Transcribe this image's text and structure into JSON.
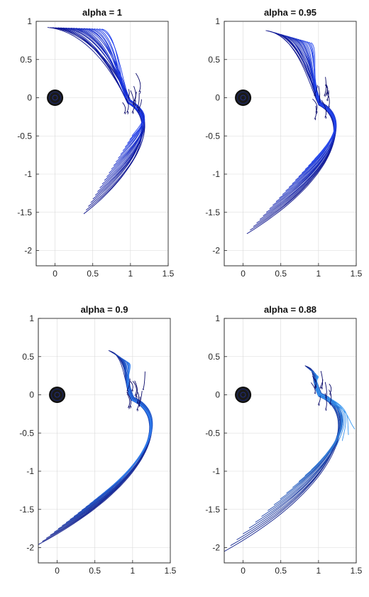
{
  "figure": {
    "background": "#ffffff"
  },
  "chart_data": [
    {
      "type": "line",
      "title": "alpha = 1",
      "xlim": [
        -0.25,
        1.5
      ],
      "ylim": [
        -2.2,
        1.0
      ],
      "xticks": [
        0,
        0.5,
        1,
        1.5
      ],
      "yticks": [
        1,
        0.5,
        0,
        -0.5,
        -1,
        -1.5,
        -2
      ],
      "xtick_labels": [
        "0",
        "0.5",
        "1",
        "1.5"
      ],
      "ytick_labels": [
        "1",
        "0.5",
        "0",
        "-0.5",
        "-1",
        "-1.5",
        "-2"
      ],
      "grid": true,
      "marker": {
        "x": 0,
        "y": 0,
        "shape": "filled-circle",
        "color": "#1a1a1a"
      },
      "trajectories": {
        "count": 22,
        "start_x": [
          -0.1,
          0.62
        ],
        "start_y": [
          0.92,
          0.9
        ],
        "pivot": [
          0.98,
          -0.05
        ],
        "apex_x": 1.25,
        "end_x": [
          0.38,
          1.02
        ],
        "end_y": [
          -1.52,
          -0.5
        ],
        "start_color": "#0a0a78",
        "end_color": "#1c3cf0"
      },
      "curl_count": 10
    },
    {
      "type": "line",
      "title": "alpha = 0.95",
      "xlim": [
        -0.25,
        1.5
      ],
      "ylim": [
        -2.2,
        1.0
      ],
      "xticks": [
        0,
        0.5,
        1,
        1.5
      ],
      "yticks": [
        1,
        0.5,
        0,
        -0.5,
        -1,
        -1.5,
        -2
      ],
      "xtick_labels": [
        "0",
        "0.5",
        "1",
        "1.5"
      ],
      "ytick_labels": [
        "1",
        "0.5",
        "0",
        "-0.5",
        "-1",
        "-1.5",
        "-2"
      ],
      "grid": true,
      "marker": {
        "x": 0,
        "y": 0,
        "shape": "filled-circle",
        "color": "#1a1a1a"
      },
      "trajectories": {
        "count": 22,
        "start_x": [
          0.3,
          0.9
        ],
        "start_y": [
          0.88,
          0.72
        ],
        "pivot": [
          1.02,
          -0.08
        ],
        "apex_x": 1.32,
        "end_x": [
          0.05,
          0.95
        ],
        "end_y": [
          -1.78,
          -0.8
        ],
        "start_color": "#0a0a78",
        "end_color": "#2448f2"
      },
      "curl_count": 10
    },
    {
      "type": "line",
      "title": "alpha = 0.9",
      "xlim": [
        -0.25,
        1.5
      ],
      "ylim": [
        -2.2,
        1.0
      ],
      "xticks": [
        0,
        0.5,
        1,
        1.5
      ],
      "yticks": [
        1,
        0.5,
        0,
        -0.5,
        -1,
        -1.5,
        -2
      ],
      "xtick_labels": [
        "0",
        "0.5",
        "1",
        "1.5"
      ],
      "ytick_labels": [
        "1",
        "0.5",
        "0",
        "-0.5",
        "-1",
        "-1.5",
        "-2"
      ],
      "grid": true,
      "marker": {
        "x": 0,
        "y": 0,
        "shape": "filled-circle",
        "color": "#1a1a1a"
      },
      "trajectories": {
        "count": 22,
        "start_x": [
          0.68,
          0.95
        ],
        "start_y": [
          0.58,
          0.42
        ],
        "pivot": [
          1.0,
          -0.05
        ],
        "apex_x": 1.38,
        "end_x": [
          -0.25,
          0.85
        ],
        "end_y": [
          -1.96,
          -1.1
        ],
        "start_color": "#0a0a78",
        "end_color": "#2f7ff0"
      },
      "curl_count": 10
    },
    {
      "type": "line",
      "title": "alpha = 0.88",
      "xlim": [
        -0.25,
        1.5
      ],
      "ylim": [
        -2.2,
        1.0
      ],
      "xticks": [
        0,
        0.5,
        1,
        1.5
      ],
      "yticks": [
        1,
        0.5,
        0,
        -0.5,
        -1,
        -1.5,
        -2
      ],
      "xtick_labels": [
        "0",
        "0.5",
        "1",
        "1.5"
      ],
      "ytick_labels": [
        "1",
        "0.5",
        "0",
        "-0.5",
        "-1",
        "-1.5",
        "-2"
      ],
      "grid": true,
      "marker": {
        "x": 0,
        "y": 0,
        "shape": "filled-circle",
        "color": "#1a1a1a"
      },
      "trajectories": {
        "count": 22,
        "start_x": [
          0.82,
          0.98
        ],
        "start_y": [
          0.38,
          0.25
        ],
        "pivot": [
          1.02,
          0.0
        ],
        "apex_x": 1.42,
        "end_x": [
          -0.25,
          1.48
        ],
        "end_y": [
          -2.05,
          -0.45
        ],
        "start_color": "#0a0a78",
        "end_color": "#3a9cf5"
      },
      "curl_count": 10
    }
  ]
}
